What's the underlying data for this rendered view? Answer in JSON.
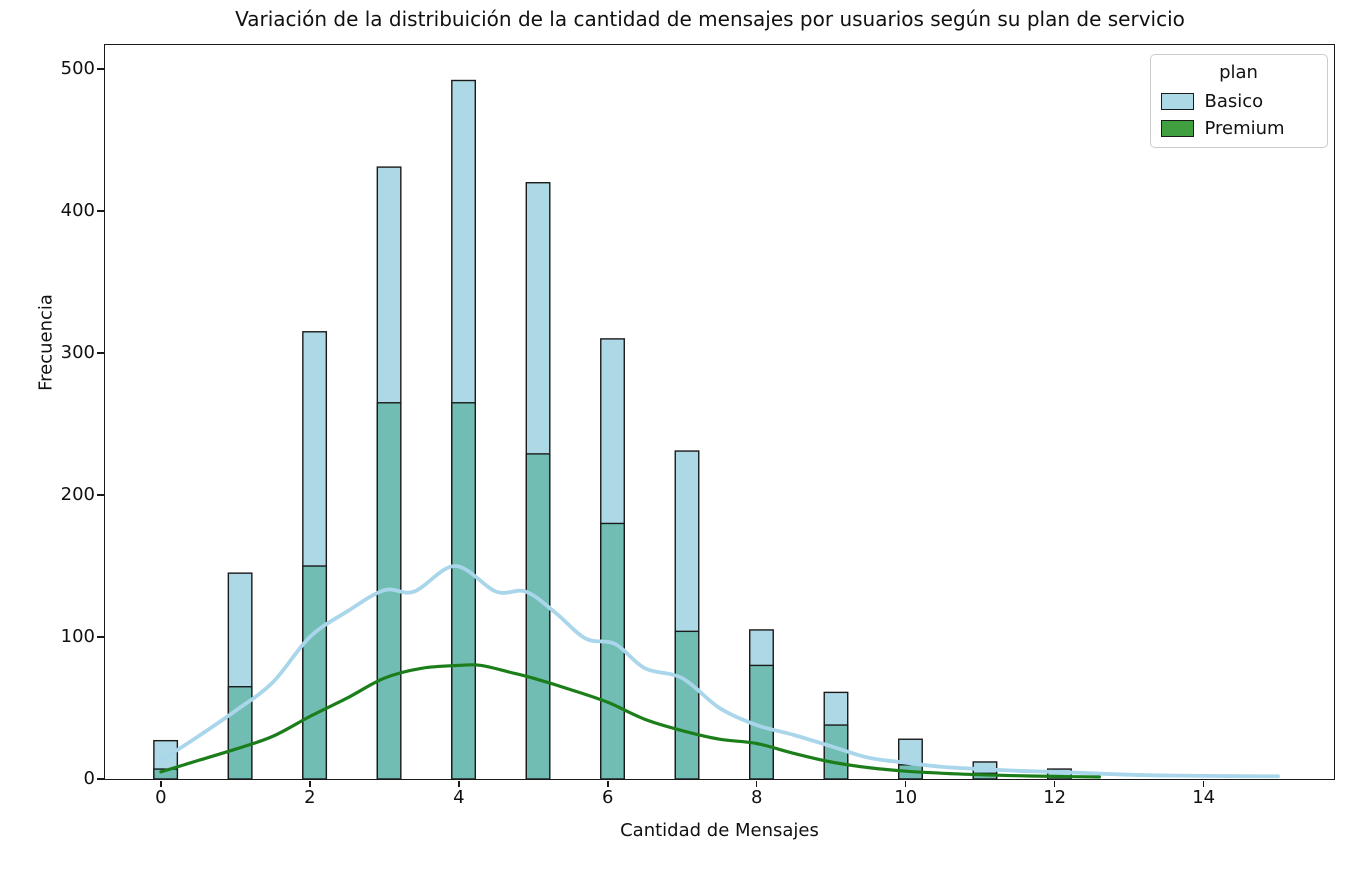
{
  "chart": {
    "title": "Variación de la distribuición de la cantidad de mensajes por usuarios según su plan de servicio",
    "xlabel": "Cantidad de Mensajes",
    "ylabel": "Frecuencia"
  },
  "legend": {
    "title": "plan",
    "entries": [
      {
        "label": "Basico",
        "color": "#add8e6"
      },
      {
        "label": "Premium",
        "color": "#40a040"
      }
    ]
  },
  "axes": {
    "x_ticks": [
      "0",
      "2",
      "4",
      "6",
      "8",
      "10",
      "12",
      "14"
    ],
    "x_tick_values": [
      0,
      2,
      4,
      6,
      8,
      10,
      12,
      14
    ],
    "y_ticks": [
      "0",
      "100",
      "200",
      "300",
      "400",
      "500"
    ],
    "y_tick_values": [
      0,
      100,
      200,
      300,
      400,
      500
    ],
    "x_lim": [
      -0.75,
      15.75
    ],
    "y_lim": [
      0,
      517
    ]
  },
  "colors": {
    "bar_basico_fill": "#add8e6",
    "bar_overlap_fill": "#71bdb4",
    "bar_edge": "#1a1a1a",
    "kde_basico": "#a9d6ea",
    "kde_premium": "#1b7e1b",
    "spine": "#1a1a1a"
  },
  "chart_data": {
    "type": "bar",
    "subtype": "overlaid-histogram-with-kde",
    "title": "Variación de la distribuición de la cantidad de mensajes por usuarios según su plan de servicio",
    "xlabel": "Cantidad de Mensajes",
    "ylabel": "Frecuencia",
    "categories": [
      0,
      1,
      2,
      3,
      4,
      5,
      6,
      7,
      8,
      9,
      10,
      11,
      12
    ],
    "bar_width_data_units": 0.315,
    "series": [
      {
        "name": "Basico",
        "values": [
          27,
          145,
          315,
          431,
          492,
          420,
          310,
          231,
          105,
          61,
          28,
          12,
          7
        ]
      },
      {
        "name": "Premium",
        "values": [
          7,
          65,
          150,
          265,
          265,
          229,
          180,
          104,
          80,
          38,
          10,
          4,
          0
        ]
      }
    ],
    "kde_curves": [
      {
        "name": "Basico",
        "points": [
          [
            0,
            13
          ],
          [
            0.5,
            30
          ],
          [
            1,
            48
          ],
          [
            1.5,
            68
          ],
          [
            2,
            100
          ],
          [
            2.5,
            118
          ],
          [
            3,
            133
          ],
          [
            3.4,
            132
          ],
          [
            3.95,
            150
          ],
          [
            4.5,
            132
          ],
          [
            4.9,
            132
          ],
          [
            5.3,
            117
          ],
          [
            5.7,
            99
          ],
          [
            6.1,
            95
          ],
          [
            6.5,
            78
          ],
          [
            7,
            71
          ],
          [
            7.5,
            50
          ],
          [
            8,
            38
          ],
          [
            8.5,
            31
          ],
          [
            9,
            23
          ],
          [
            9.5,
            15
          ],
          [
            10,
            11.5
          ],
          [
            10.5,
            8.5
          ],
          [
            11,
            7
          ],
          [
            11.5,
            5.8
          ],
          [
            12,
            5
          ],
          [
            12.5,
            4
          ],
          [
            13,
            3
          ],
          [
            13.5,
            2.5
          ],
          [
            14,
            2.2
          ],
          [
            14.5,
            2
          ],
          [
            15,
            1.9
          ]
        ]
      },
      {
        "name": "Premium",
        "points": [
          [
            0,
            5
          ],
          [
            0.5,
            13
          ],
          [
            1,
            21
          ],
          [
            1.5,
            30
          ],
          [
            2,
            44
          ],
          [
            2.5,
            57
          ],
          [
            3,
            71
          ],
          [
            3.5,
            78
          ],
          [
            4,
            80
          ],
          [
            4.3,
            80
          ],
          [
            4.7,
            75
          ],
          [
            5,
            71
          ],
          [
            5.5,
            63
          ],
          [
            6,
            54
          ],
          [
            6.5,
            42
          ],
          [
            7,
            34
          ],
          [
            7.5,
            28
          ],
          [
            8,
            25
          ],
          [
            8.5,
            18
          ],
          [
            9,
            12
          ],
          [
            9.5,
            8
          ],
          [
            10,
            5.5
          ],
          [
            10.5,
            4
          ],
          [
            11,
            3
          ],
          [
            11.5,
            2.3
          ],
          [
            12,
            1.8
          ],
          [
            12.6,
            1.4
          ]
        ]
      }
    ],
    "legend_title": "plan",
    "legend_position": "upper right",
    "grid": false,
    "xlim": [
      -0.75,
      15.75
    ],
    "ylim": [
      0,
      517
    ]
  }
}
